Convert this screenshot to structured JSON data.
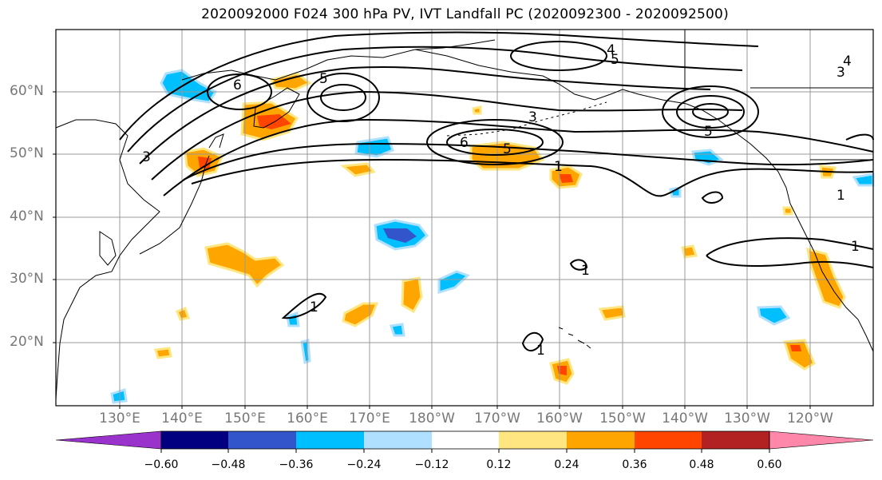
{
  "title": "2020092000 F024 300 hPa PV, IVT Landfall PC (2020092300 - 2020092500)",
  "lat_labels": [
    "60°N",
    "50°N",
    "40°N",
    "30°N",
    "20°N"
  ],
  "lon_labels": [
    "130°E",
    "140°E",
    "150°E",
    "160°E",
    "170°E",
    "180°W",
    "170°W",
    "160°W",
    "150°W",
    "140°W",
    "130°W",
    "120°W"
  ],
  "colorbar": {
    "tick_labels": [
      "−0.60",
      "−0.48",
      "−0.36",
      "−0.24",
      "−0.12",
      "0.12",
      "0.24",
      "0.36",
      "0.48",
      "0.60"
    ],
    "colors": [
      "#9933cc",
      "#000080",
      "#3355cc",
      "#00bfff",
      "#b0e0ff",
      "#ffffff",
      "#ffe680",
      "#ffa500",
      "#ff4500",
      "#b22222",
      "#ff88aa"
    ]
  },
  "contour_labels": [
    "3",
    "5",
    "5",
    "6",
    "4",
    "5",
    "4",
    "3",
    "3",
    "5",
    "6",
    "1",
    "1",
    "1",
    "1",
    "1",
    "1"
  ],
  "colors": {
    "positive": "#ffa500",
    "strong_positive": "#ff4500",
    "negative": "#00bfff",
    "strong_negative": "#3355cc",
    "contour": "#000000",
    "coast": "#000000",
    "grid": "#999999"
  }
}
